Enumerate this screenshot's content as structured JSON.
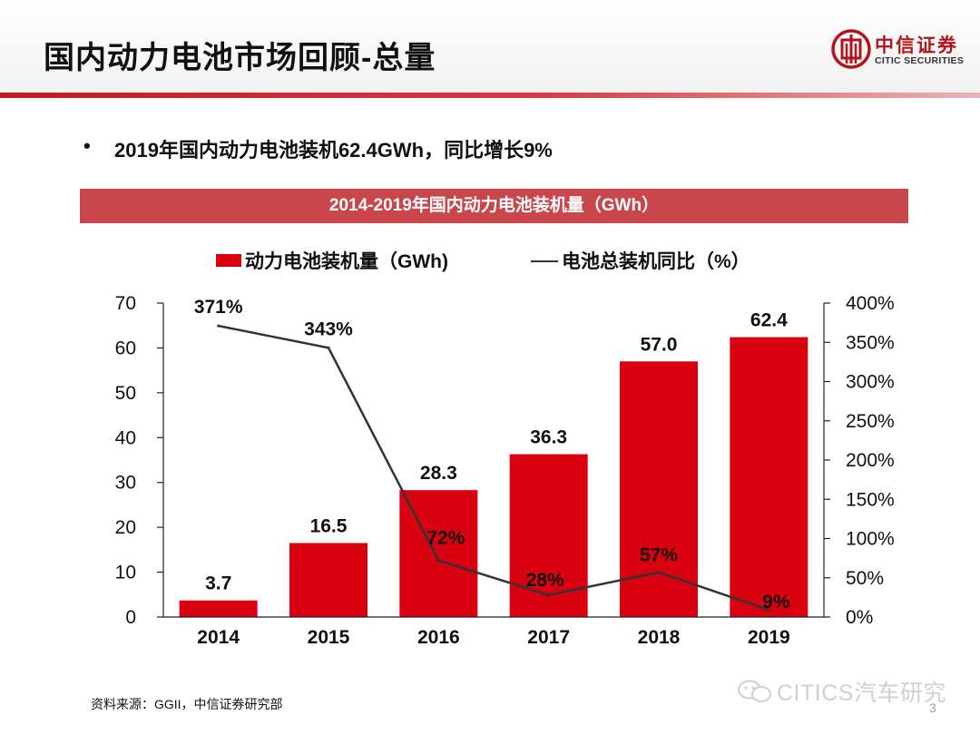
{
  "header": {
    "title": "国内动力电池市场回顾-总量",
    "logo_cn": "中信证券",
    "logo_en": "CITIC SECURITIES",
    "brand_color": "#b3141c"
  },
  "bullet": {
    "dot": "•",
    "text": "2019年国内动力电池装机62.4GWh，同比增长9%"
  },
  "banner": {
    "text": "2014-2019年国内动力电池装机量（GWh）",
    "color": "#c9474a"
  },
  "chart_data": {
    "type": "bar",
    "title": "2014-2019年国内动力电池装机量（GWh）",
    "categories": [
      "2014",
      "2015",
      "2016",
      "2017",
      "2018",
      "2019"
    ],
    "series": [
      {
        "name": "动力电池装机量（GWh)",
        "type": "bar",
        "axis": "left",
        "color": "#d90010",
        "values": [
          3.7,
          16.5,
          28.3,
          36.3,
          57.0,
          62.4
        ],
        "labels": [
          "3.7",
          "16.5",
          "28.3",
          "36.3",
          "57.0",
          "62.4"
        ]
      },
      {
        "name": "电池总装机同比（%）",
        "type": "line",
        "axis": "right",
        "color": "#333333",
        "values": [
          371,
          343,
          72,
          28,
          57,
          9
        ],
        "labels": [
          "371%",
          "343%",
          "72%",
          "28%",
          "57%",
          "9%"
        ]
      }
    ],
    "y_left": {
      "min": 0,
      "max": 70,
      "ticks": [
        "0",
        "10",
        "20",
        "30",
        "40",
        "50",
        "60",
        "70"
      ]
    },
    "y_right": {
      "min": 0,
      "max": 400,
      "ticks": [
        "0%",
        "50%",
        "100%",
        "150%",
        "200%",
        "250%",
        "300%",
        "350%",
        "400%"
      ]
    },
    "legend_position": "top",
    "grid": false
  },
  "footnote": "资料来源：GGII，中信证券研究部",
  "watermark": "CITICS汽车研究",
  "page_number": "3"
}
